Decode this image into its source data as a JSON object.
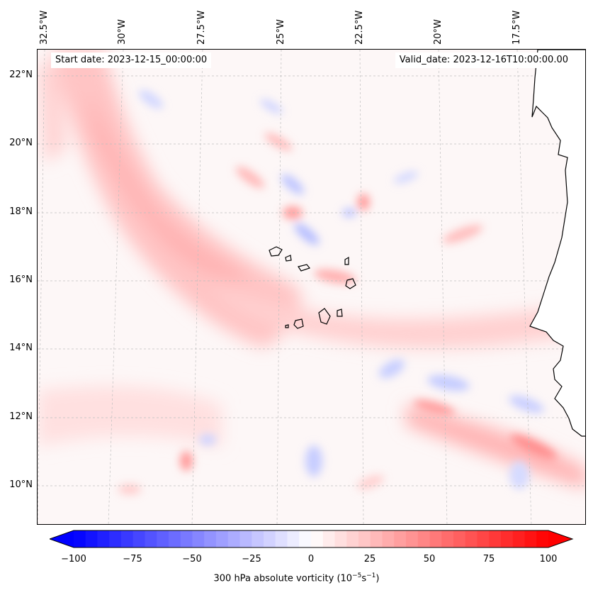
{
  "header": {
    "start_date": "Start date: 2023-12-15_00:00:00",
    "valid_date": "Valid_date: 2023-12-16T10:00:00.00"
  },
  "longitude_labels": [
    "32.5°W",
    "30°W",
    "27.5°W",
    "25°W",
    "22.5°W",
    "20°W",
    "17.5°W"
  ],
  "latitude_labels": [
    "22°N",
    "20°N",
    "18°N",
    "16°N",
    "14°N",
    "12°N",
    "10°N"
  ],
  "colorbar": {
    "label_text": "300 hPa absolute vorticity (10",
    "label_exp1": "−5",
    "label_mid": "s",
    "label_exp2": "−1",
    "label_end": ")",
    "ticks": [
      "−100",
      "−75",
      "−50",
      "−25",
      "0",
      "25",
      "50",
      "75",
      "100"
    ],
    "min": -100,
    "max": 100,
    "step": 5,
    "low_color": "#0000ff",
    "high_color": "#ff0000"
  },
  "map": {
    "land_outline_color": "#000000",
    "grid_color": "#bfbfbf"
  }
}
